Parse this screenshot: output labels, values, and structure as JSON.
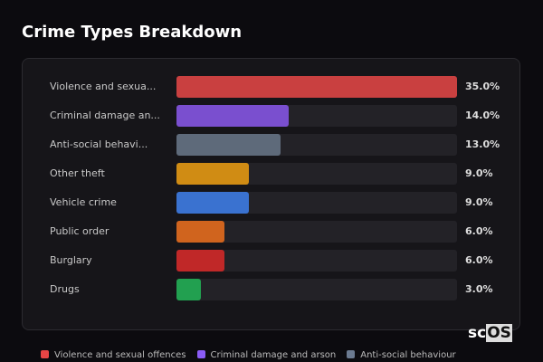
{
  "chart_data": {
    "type": "bar",
    "orientation": "horizontal",
    "title": "Crime Types Breakdown",
    "xlim": [
      0,
      35
    ],
    "categories": [
      "Violence and sexua...",
      "Criminal damage an...",
      "Anti-social behavi...",
      "Other theft",
      "Vehicle crime",
      "Public order",
      "Burglary",
      "Drugs"
    ],
    "values": [
      35.0,
      14.0,
      13.0,
      9.0,
      9.0,
      6.0,
      6.0,
      3.0
    ],
    "value_labels": [
      "35.0%",
      "14.0%",
      "13.0%",
      "9.0%",
      "9.0%",
      "6.0%",
      "6.0%",
      "3.0%"
    ],
    "colors": [
      "#c94040",
      "#7a4fcf",
      "#5e6a7a",
      "#d08c14",
      "#3a72d0",
      "#d0641e",
      "#c02828",
      "#22a050"
    ],
    "legend": [
      {
        "label": "Violence and sexual offences",
        "color": "#e84545"
      },
      {
        "label": "Criminal damage and arson",
        "color": "#8b5cf6"
      },
      {
        "label": "Anti-social behaviour",
        "color": "#6b7a90"
      }
    ],
    "legend_position": "bottom"
  },
  "logo": {
    "text_a": "sc",
    "text_b": "OS"
  }
}
